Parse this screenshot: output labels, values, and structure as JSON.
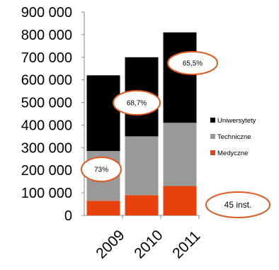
{
  "chart_data": {
    "type": "bar",
    "stacked": true,
    "categories": [
      "2009",
      "2010",
      "2011"
    ],
    "series": [
      {
        "name": "Medyczne",
        "values": [
          65000,
          90000,
          130000
        ]
      },
      {
        "name": "Techniczne",
        "values": [
          220000,
          260000,
          280000
        ]
      },
      {
        "name": "Uniwersytety",
        "values": [
          335000,
          350000,
          400000
        ]
      }
    ],
    "y_tick_labels": [
      "0",
      "100 000",
      "200 000",
      "300 000",
      "400 000",
      "500 000",
      "600 000",
      "700 000",
      "800 000",
      "900 000"
    ],
    "ylim": [
      0,
      900000
    ],
    "grid": false,
    "legend_position": "right",
    "colors": {
      "Uniwersytety": "#000000",
      "Techniczne": "#999999",
      "Medyczne": "#e8410c",
      "annotation_outline": "#e2591d",
      "text": "#000000"
    },
    "annotations": [
      {
        "id": "ann-2009",
        "text": "73%",
        "category": "2009"
      },
      {
        "id": "ann-2010",
        "text": "68,7%",
        "category": "2010"
      },
      {
        "id": "ann-2011",
        "text": "65,5%",
        "category": "2011"
      },
      {
        "id": "ann-inst",
        "text": "45 inst."
      }
    ]
  }
}
